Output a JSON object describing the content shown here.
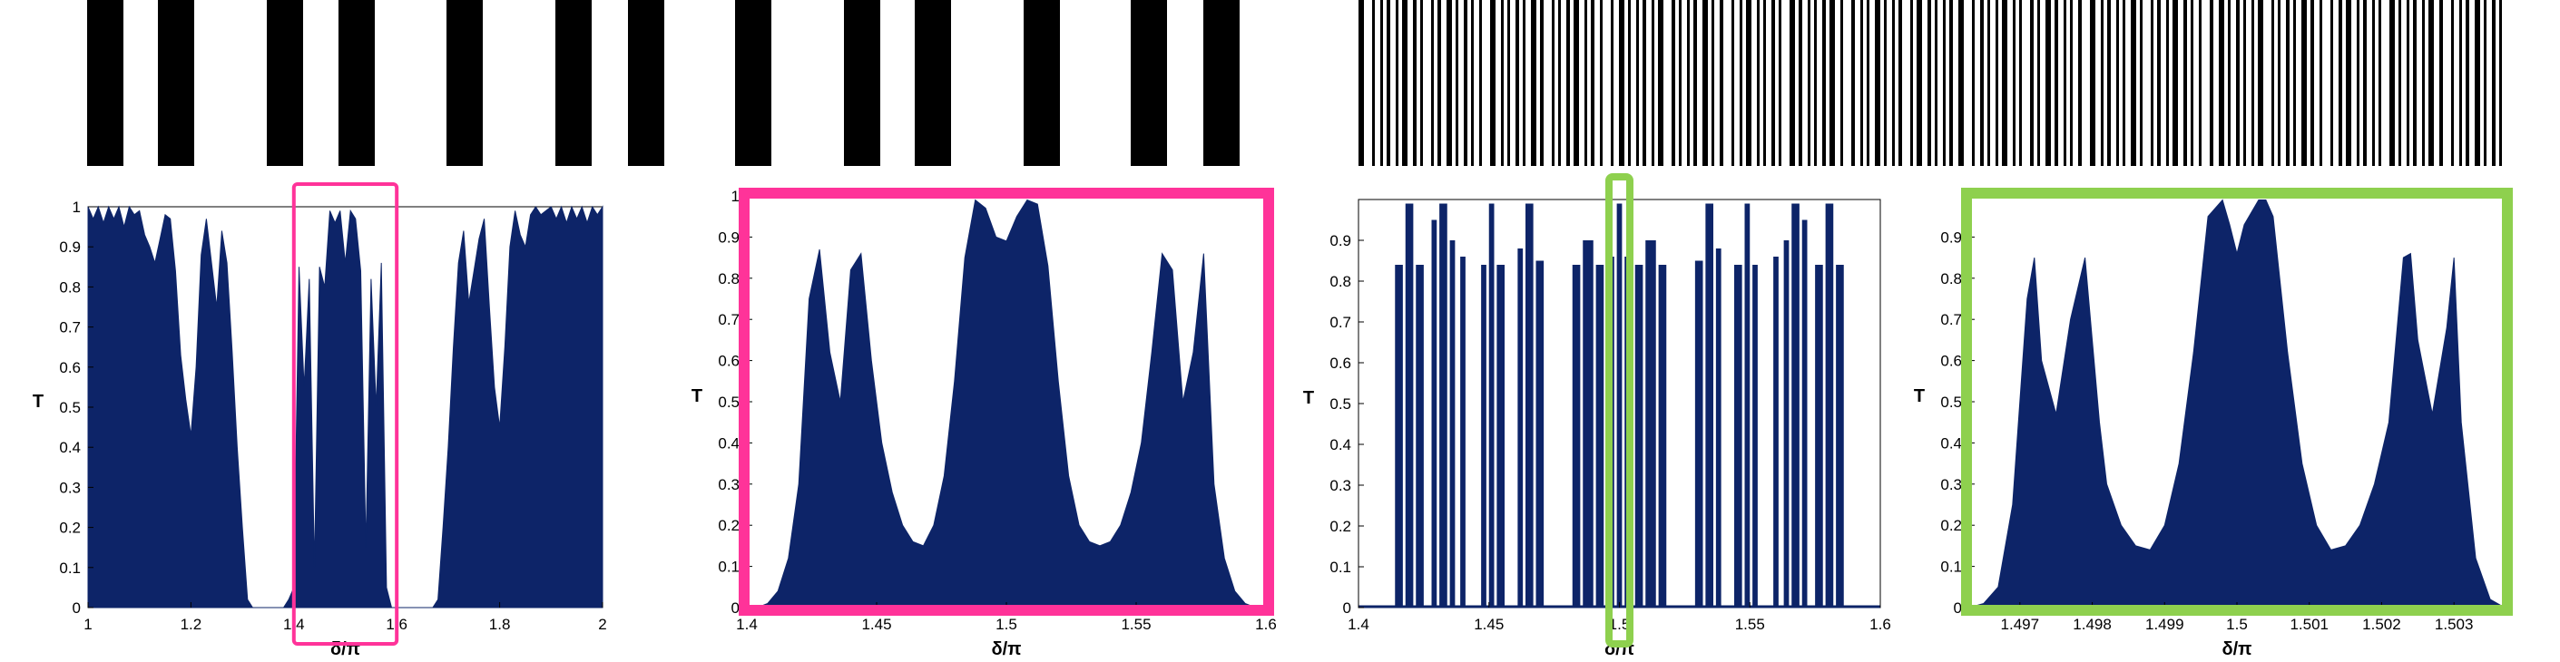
{
  "colors": {
    "fill": "#0d2468",
    "highlight_pink": "#ff3399",
    "highlight_green": "#8ed04e",
    "bar": "#000000"
  },
  "chart_data": [
    {
      "type": "area",
      "panel": "p1",
      "xlabel": "δ/π",
      "ylabel": "T",
      "xlim": [
        1,
        2
      ],
      "ylim": [
        0,
        1
      ],
      "xticks": [
        1,
        1.2,
        1.4,
        1.6,
        1.8,
        2
      ],
      "xtick_labels": [
        "1",
        "1.2",
        "1.4",
        "1.6",
        "1.8",
        "2"
      ],
      "yticks": [
        0,
        0.1,
        0.2,
        0.3,
        0.4,
        0.5,
        0.6,
        0.7,
        0.8,
        0.9,
        1
      ],
      "ytick_labels": [
        "0",
        "0.1",
        "0.2",
        "0.3",
        "0.4",
        "0.5",
        "0.6",
        "0.7",
        "0.8",
        "0.9",
        "1"
      ],
      "highlight": {
        "x": [
          1.4,
          1.6
        ],
        "color": "pink"
      },
      "series": [
        {
          "x": [
            1.0,
            1.01,
            1.02,
            1.03,
            1.04,
            1.05,
            1.06,
            1.07,
            1.08,
            1.09,
            1.1,
            1.11,
            1.12,
            1.13,
            1.14,
            1.15,
            1.16,
            1.17,
            1.18,
            1.19,
            1.2,
            1.21,
            1.22,
            1.23,
            1.24,
            1.25,
            1.26,
            1.27,
            1.28,
            1.29,
            1.3,
            1.31,
            1.32,
            1.33,
            1.34,
            1.35,
            1.36,
            1.37,
            1.38,
            1.39,
            1.4,
            1.41,
            1.42,
            1.43,
            1.44,
            1.45,
            1.46,
            1.47,
            1.48,
            1.49,
            1.5,
            1.51,
            1.52,
            1.53,
            1.54,
            1.55,
            1.56,
            1.57,
            1.58,
            1.59,
            1.6,
            1.61,
            1.62,
            1.63,
            1.64,
            1.65,
            1.66,
            1.67,
            1.68,
            1.69,
            1.7,
            1.71,
            1.72,
            1.73,
            1.74,
            1.75,
            1.76,
            1.77,
            1.78,
            1.79,
            1.8,
            1.81,
            1.82,
            1.83,
            1.84,
            1.85,
            1.86,
            1.87,
            1.88,
            1.89,
            1.9,
            1.91,
            1.92,
            1.93,
            1.94,
            1.95,
            1.96,
            1.97,
            1.98,
            1.99,
            2.0
          ],
          "y": [
            1.0,
            0.97,
            1.0,
            0.96,
            1.0,
            0.97,
            1.0,
            0.95,
            1.0,
            0.98,
            0.99,
            0.93,
            0.9,
            0.86,
            0.92,
            0.98,
            0.97,
            0.84,
            0.63,
            0.52,
            0.43,
            0.6,
            0.88,
            0.97,
            0.86,
            0.75,
            0.94,
            0.86,
            0.64,
            0.4,
            0.2,
            0.02,
            0.0,
            0.0,
            0.0,
            0.0,
            0.0,
            0.0,
            0.0,
            0.02,
            0.05,
            0.85,
            0.55,
            0.82,
            0.1,
            0.85,
            0.8,
            0.99,
            0.96,
            0.99,
            0.86,
            0.99,
            0.97,
            0.84,
            0.15,
            0.82,
            0.5,
            0.86,
            0.05,
            0.0,
            0.0,
            0.0,
            0.0,
            0.0,
            0.0,
            0.0,
            0.0,
            0.0,
            0.02,
            0.2,
            0.4,
            0.65,
            0.86,
            0.94,
            0.76,
            0.84,
            0.92,
            0.97,
            0.75,
            0.55,
            0.45,
            0.65,
            0.9,
            0.99,
            0.93,
            0.9,
            0.98,
            1.0,
            0.98,
            0.99,
            1.0,
            0.97,
            1.0,
            0.96,
            1.0,
            0.97,
            1.0,
            0.96,
            1.0,
            0.98,
            1.0
          ]
        }
      ]
    },
    {
      "type": "area",
      "panel": "p2",
      "xlabel": "δ/π",
      "ylabel": "T",
      "xlim": [
        1.4,
        1.6
      ],
      "ylim": [
        0,
        1
      ],
      "xticks": [
        1.4,
        1.45,
        1.5,
        1.55,
        1.6
      ],
      "xtick_labels": [
        "1.4",
        "1.45",
        "1.5",
        "1.55",
        "1.6"
      ],
      "yticks": [
        0,
        0.1,
        0.2,
        0.3,
        0.4,
        0.5,
        0.6,
        0.7,
        0.8,
        0.9,
        1
      ],
      "ytick_labels": [
        "0",
        "0.1",
        "0.2",
        "0.3",
        "0.4",
        "0.5",
        "0.6",
        "0.7",
        "0.8",
        "0.9",
        "1"
      ],
      "series": [
        {
          "x": [
            1.4,
            1.404,
            1.408,
            1.412,
            1.416,
            1.42,
            1.424,
            1.428,
            1.432,
            1.436,
            1.44,
            1.444,
            1.448,
            1.452,
            1.456,
            1.46,
            1.464,
            1.468,
            1.472,
            1.476,
            1.48,
            1.484,
            1.488,
            1.492,
            1.496,
            1.5,
            1.504,
            1.508,
            1.512,
            1.516,
            1.52,
            1.524,
            1.528,
            1.532,
            1.536,
            1.54,
            1.544,
            1.548,
            1.552,
            1.556,
            1.56,
            1.564,
            1.568,
            1.572,
            1.576,
            1.58,
            1.584,
            1.588,
            1.592,
            1.596,
            1.6
          ],
          "y": [
            0.0,
            0.0,
            0.01,
            0.04,
            0.12,
            0.3,
            0.75,
            0.87,
            0.62,
            0.5,
            0.82,
            0.86,
            0.6,
            0.4,
            0.28,
            0.2,
            0.16,
            0.15,
            0.2,
            0.32,
            0.55,
            0.85,
            0.99,
            0.97,
            0.9,
            0.89,
            0.95,
            0.99,
            0.98,
            0.83,
            0.55,
            0.32,
            0.2,
            0.16,
            0.15,
            0.16,
            0.2,
            0.28,
            0.4,
            0.62,
            0.86,
            0.82,
            0.5,
            0.62,
            0.86,
            0.3,
            0.12,
            0.04,
            0.01,
            0.0,
            0.0
          ]
        }
      ]
    },
    {
      "type": "area",
      "panel": "p3",
      "xlabel": "δ/π",
      "ylabel": "T",
      "xlim": [
        1.4,
        1.6
      ],
      "ylim": [
        0,
        1
      ],
      "xticks": [
        1.4,
        1.45,
        1.5,
        1.55,
        1.6
      ],
      "xtick_labels": [
        "1.4",
        "1.45",
        "1.5",
        "1.55",
        "1.6"
      ],
      "yticks": [
        0,
        0.1,
        0.2,
        0.3,
        0.4,
        0.5,
        0.6,
        0.7,
        0.8,
        0.9
      ],
      "ytick_labels": [
        "0",
        "0.1",
        "0.2",
        "0.3",
        "0.4",
        "0.5",
        "0.6",
        "0.7",
        "0.8",
        "0.9"
      ],
      "highlight": {
        "x": [
          1.496,
          1.504
        ],
        "color": "green"
      },
      "series": [
        {
          "bands": [
            [
              1.414,
              1.417,
              0.84
            ],
            [
              1.418,
              1.421,
              0.99
            ],
            [
              1.422,
              1.425,
              0.84
            ],
            [
              1.428,
              1.43,
              0.95
            ],
            [
              1.431,
              1.434,
              0.99
            ],
            [
              1.435,
              1.437,
              0.9
            ],
            [
              1.439,
              1.441,
              0.86
            ],
            [
              1.447,
              1.449,
              0.84
            ],
            [
              1.45,
              1.452,
              0.99
            ],
            [
              1.453,
              1.456,
              0.84
            ],
            [
              1.461,
              1.463,
              0.88
            ],
            [
              1.464,
              1.467,
              0.99
            ],
            [
              1.468,
              1.471,
              0.85
            ],
            [
              1.482,
              1.485,
              0.84
            ],
            [
              1.486,
              1.49,
              0.9
            ],
            [
              1.491,
              1.494,
              0.84
            ],
            [
              1.496,
              1.498,
              0.86
            ],
            [
              1.499,
              1.501,
              0.99
            ],
            [
              1.502,
              1.504,
              0.86
            ],
            [
              1.506,
              1.509,
              0.84
            ],
            [
              1.51,
              1.514,
              0.9
            ],
            [
              1.515,
              1.518,
              0.84
            ],
            [
              1.529,
              1.532,
              0.85
            ],
            [
              1.533,
              1.536,
              0.99
            ],
            [
              1.537,
              1.539,
              0.88
            ],
            [
              1.544,
              1.547,
              0.84
            ],
            [
              1.548,
              1.55,
              0.99
            ],
            [
              1.551,
              1.553,
              0.84
            ],
            [
              1.559,
              1.561,
              0.86
            ],
            [
              1.563,
              1.565,
              0.9
            ],
            [
              1.566,
              1.569,
              0.99
            ],
            [
              1.57,
              1.572,
              0.95
            ],
            [
              1.575,
              1.578,
              0.84
            ],
            [
              1.579,
              1.582,
              0.99
            ],
            [
              1.583,
              1.586,
              0.84
            ]
          ]
        }
      ]
    },
    {
      "type": "area",
      "panel": "p4",
      "xlabel": "δ/π",
      "ylabel": "T",
      "xlim": [
        1.4963,
        1.5037
      ],
      "ylim": [
        0,
        1
      ],
      "xticks": [
        1.497,
        1.498,
        1.499,
        1.5,
        1.501,
        1.502,
        1.503
      ],
      "xtick_labels": [
        "1.497",
        "1.498",
        "1.499",
        "1.5",
        "1.501",
        "1.502",
        "1.503"
      ],
      "yticks": [
        0,
        0.1,
        0.2,
        0.3,
        0.4,
        0.5,
        0.6,
        0.7,
        0.8,
        0.9
      ],
      "ytick_labels": [
        "0",
        "0.1",
        "0.2",
        "0.3",
        "0.4",
        "0.5",
        "0.6",
        "0.7",
        "0.8",
        "0.9"
      ],
      "series": [
        {
          "x": [
            1.4963,
            1.4965,
            1.4967,
            1.4969,
            1.4971,
            1.4972,
            1.4973,
            1.4975,
            1.4977,
            1.4979,
            1.4981,
            1.4982,
            1.4984,
            1.4986,
            1.4988,
            1.499,
            1.4992,
            1.4994,
            1.4996,
            1.4998,
            1.4999,
            1.5,
            1.5001,
            1.5003,
            1.5004,
            1.5005,
            1.5007,
            1.5009,
            1.5011,
            1.5013,
            1.5015,
            1.5017,
            1.5019,
            1.5021,
            1.5023,
            1.5024,
            1.5025,
            1.5027,
            1.5029,
            1.503,
            1.5031,
            1.5033,
            1.5035,
            1.5037
          ],
          "y": [
            0.0,
            0.01,
            0.05,
            0.25,
            0.75,
            0.85,
            0.6,
            0.47,
            0.7,
            0.85,
            0.45,
            0.3,
            0.2,
            0.15,
            0.14,
            0.2,
            0.35,
            0.62,
            0.95,
            0.99,
            0.93,
            0.86,
            0.93,
            0.99,
            0.99,
            0.95,
            0.62,
            0.35,
            0.2,
            0.14,
            0.15,
            0.2,
            0.3,
            0.45,
            0.85,
            0.86,
            0.65,
            0.47,
            0.68,
            0.85,
            0.45,
            0.12,
            0.02,
            0.0
          ]
        }
      ]
    }
  ]
}
